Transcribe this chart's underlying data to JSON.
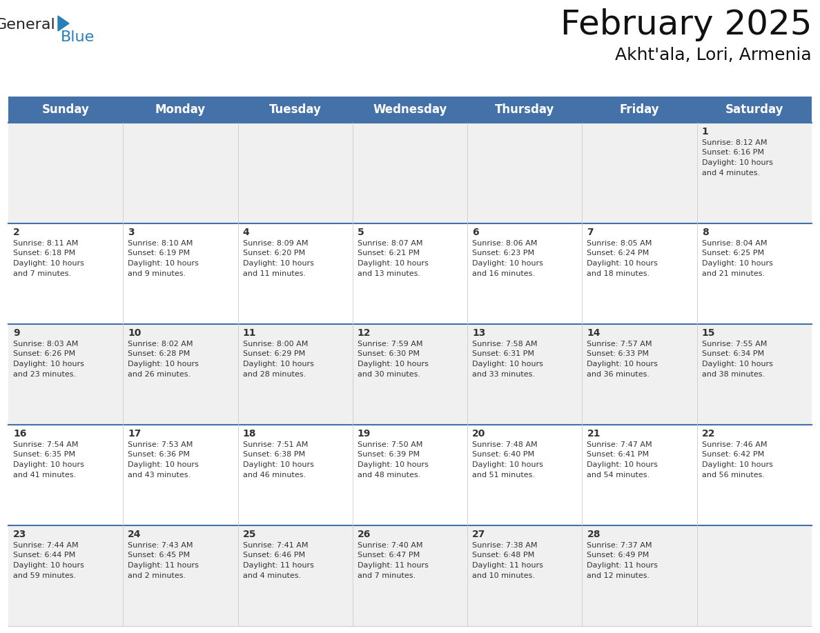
{
  "title": "February 2025",
  "subtitle": "Akht'ala, Lori, Armenia",
  "header_color": "#4472a8",
  "header_text_color": "#ffffff",
  "cell_bg_light": "#f0f0f0",
  "cell_bg_white": "#ffffff",
  "border_color": "#4472a8",
  "grid_color": "#cccccc",
  "day_num_color": "#333333",
  "cell_text_color": "#333333",
  "day_headers": [
    "Sunday",
    "Monday",
    "Tuesday",
    "Wednesday",
    "Thursday",
    "Friday",
    "Saturday"
  ],
  "title_fontsize": 36,
  "subtitle_fontsize": 18,
  "header_fontsize": 12,
  "day_num_fontsize": 10,
  "cell_fontsize": 8,
  "logo_general_color": "#222222",
  "logo_blue_color": "#2980b9",
  "days": [
    {
      "day": 1,
      "col": 6,
      "row": 0,
      "sunrise": "8:12 AM",
      "sunset": "6:16 PM",
      "daylight_h": "10 hours",
      "daylight_m": "4 minutes."
    },
    {
      "day": 2,
      "col": 0,
      "row": 1,
      "sunrise": "8:11 AM",
      "sunset": "6:18 PM",
      "daylight_h": "10 hours",
      "daylight_m": "7 minutes."
    },
    {
      "day": 3,
      "col": 1,
      "row": 1,
      "sunrise": "8:10 AM",
      "sunset": "6:19 PM",
      "daylight_h": "10 hours",
      "daylight_m": "9 minutes."
    },
    {
      "day": 4,
      "col": 2,
      "row": 1,
      "sunrise": "8:09 AM",
      "sunset": "6:20 PM",
      "daylight_h": "10 hours",
      "daylight_m": "11 minutes."
    },
    {
      "day": 5,
      "col": 3,
      "row": 1,
      "sunrise": "8:07 AM",
      "sunset": "6:21 PM",
      "daylight_h": "10 hours",
      "daylight_m": "13 minutes."
    },
    {
      "day": 6,
      "col": 4,
      "row": 1,
      "sunrise": "8:06 AM",
      "sunset": "6:23 PM",
      "daylight_h": "10 hours",
      "daylight_m": "16 minutes."
    },
    {
      "day": 7,
      "col": 5,
      "row": 1,
      "sunrise": "8:05 AM",
      "sunset": "6:24 PM",
      "daylight_h": "10 hours",
      "daylight_m": "18 minutes."
    },
    {
      "day": 8,
      "col": 6,
      "row": 1,
      "sunrise": "8:04 AM",
      "sunset": "6:25 PM",
      "daylight_h": "10 hours",
      "daylight_m": "21 minutes."
    },
    {
      "day": 9,
      "col": 0,
      "row": 2,
      "sunrise": "8:03 AM",
      "sunset": "6:26 PM",
      "daylight_h": "10 hours",
      "daylight_m": "23 minutes."
    },
    {
      "day": 10,
      "col": 1,
      "row": 2,
      "sunrise": "8:02 AM",
      "sunset": "6:28 PM",
      "daylight_h": "10 hours",
      "daylight_m": "26 minutes."
    },
    {
      "day": 11,
      "col": 2,
      "row": 2,
      "sunrise": "8:00 AM",
      "sunset": "6:29 PM",
      "daylight_h": "10 hours",
      "daylight_m": "28 minutes."
    },
    {
      "day": 12,
      "col": 3,
      "row": 2,
      "sunrise": "7:59 AM",
      "sunset": "6:30 PM",
      "daylight_h": "10 hours",
      "daylight_m": "30 minutes."
    },
    {
      "day": 13,
      "col": 4,
      "row": 2,
      "sunrise": "7:58 AM",
      "sunset": "6:31 PM",
      "daylight_h": "10 hours",
      "daylight_m": "33 minutes."
    },
    {
      "day": 14,
      "col": 5,
      "row": 2,
      "sunrise": "7:57 AM",
      "sunset": "6:33 PM",
      "daylight_h": "10 hours",
      "daylight_m": "36 minutes."
    },
    {
      "day": 15,
      "col": 6,
      "row": 2,
      "sunrise": "7:55 AM",
      "sunset": "6:34 PM",
      "daylight_h": "10 hours",
      "daylight_m": "38 minutes."
    },
    {
      "day": 16,
      "col": 0,
      "row": 3,
      "sunrise": "7:54 AM",
      "sunset": "6:35 PM",
      "daylight_h": "10 hours",
      "daylight_m": "41 minutes."
    },
    {
      "day": 17,
      "col": 1,
      "row": 3,
      "sunrise": "7:53 AM",
      "sunset": "6:36 PM",
      "daylight_h": "10 hours",
      "daylight_m": "43 minutes."
    },
    {
      "day": 18,
      "col": 2,
      "row": 3,
      "sunrise": "7:51 AM",
      "sunset": "6:38 PM",
      "daylight_h": "10 hours",
      "daylight_m": "46 minutes."
    },
    {
      "day": 19,
      "col": 3,
      "row": 3,
      "sunrise": "7:50 AM",
      "sunset": "6:39 PM",
      "daylight_h": "10 hours",
      "daylight_m": "48 minutes."
    },
    {
      "day": 20,
      "col": 4,
      "row": 3,
      "sunrise": "7:48 AM",
      "sunset": "6:40 PM",
      "daylight_h": "10 hours",
      "daylight_m": "51 minutes."
    },
    {
      "day": 21,
      "col": 5,
      "row": 3,
      "sunrise": "7:47 AM",
      "sunset": "6:41 PM",
      "daylight_h": "10 hours",
      "daylight_m": "54 minutes."
    },
    {
      "day": 22,
      "col": 6,
      "row": 3,
      "sunrise": "7:46 AM",
      "sunset": "6:42 PM",
      "daylight_h": "10 hours",
      "daylight_m": "56 minutes."
    },
    {
      "day": 23,
      "col": 0,
      "row": 4,
      "sunrise": "7:44 AM",
      "sunset": "6:44 PM",
      "daylight_h": "10 hours",
      "daylight_m": "59 minutes."
    },
    {
      "day": 24,
      "col": 1,
      "row": 4,
      "sunrise": "7:43 AM",
      "sunset": "6:45 PM",
      "daylight_h": "11 hours",
      "daylight_m": "2 minutes."
    },
    {
      "day": 25,
      "col": 2,
      "row": 4,
      "sunrise": "7:41 AM",
      "sunset": "6:46 PM",
      "daylight_h": "11 hours",
      "daylight_m": "4 minutes."
    },
    {
      "day": 26,
      "col": 3,
      "row": 4,
      "sunrise": "7:40 AM",
      "sunset": "6:47 PM",
      "daylight_h": "11 hours",
      "daylight_m": "7 minutes."
    },
    {
      "day": 27,
      "col": 4,
      "row": 4,
      "sunrise": "7:38 AM",
      "sunset": "6:48 PM",
      "daylight_h": "11 hours",
      "daylight_m": "10 minutes."
    },
    {
      "day": 28,
      "col": 5,
      "row": 4,
      "sunrise": "7:37 AM",
      "sunset": "6:49 PM",
      "daylight_h": "11 hours",
      "daylight_m": "12 minutes."
    }
  ]
}
